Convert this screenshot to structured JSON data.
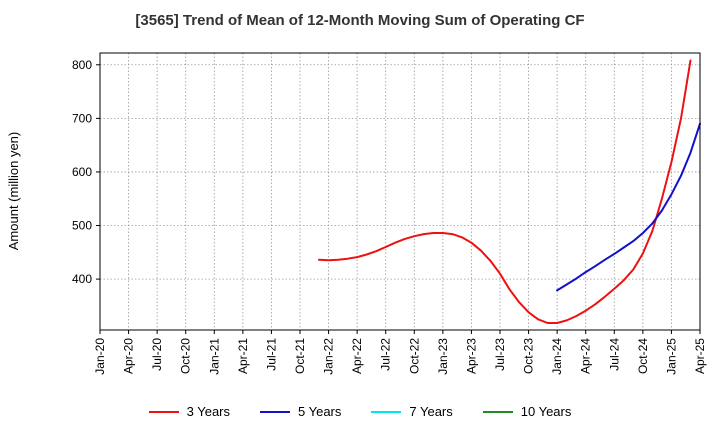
{
  "chart_data": {
    "type": "line",
    "title": "[3565]  Trend of Mean of 12-Month Moving Sum of Operating CF",
    "ylabel": "Amount (million yen)",
    "xlabel": "",
    "x_ticks": [
      "Jan-20",
      "Apr-20",
      "Jul-20",
      "Oct-20",
      "Jan-21",
      "Apr-21",
      "Jul-21",
      "Oct-21",
      "Jan-22",
      "Apr-22",
      "Jul-22",
      "Oct-22",
      "Jan-23",
      "Apr-23",
      "Jul-23",
      "Oct-23",
      "Jan-24",
      "Apr-24",
      "Jul-24",
      "Oct-24",
      "Jan-25",
      "Apr-25"
    ],
    "y_ticks": [
      400,
      500,
      600,
      700,
      800
    ],
    "ylim": [
      305,
      822
    ],
    "grid": true,
    "legend_position": "bottom",
    "series": [
      {
        "name": "3 Years",
        "color": "#ee1111",
        "points": [
          [
            "2021-12",
            436
          ],
          [
            "2022-01",
            435
          ],
          [
            "2022-02",
            436
          ],
          [
            "2022-03",
            438
          ],
          [
            "2022-04",
            441
          ],
          [
            "2022-05",
            446
          ],
          [
            "2022-06",
            452
          ],
          [
            "2022-07",
            460
          ],
          [
            "2022-08",
            468
          ],
          [
            "2022-09",
            475
          ],
          [
            "2022-10",
            480
          ],
          [
            "2022-11",
            484
          ],
          [
            "2022-12",
            486
          ],
          [
            "2023-01",
            486
          ],
          [
            "2023-02",
            484
          ],
          [
            "2023-03",
            478
          ],
          [
            "2023-04",
            468
          ],
          [
            "2023-05",
            453
          ],
          [
            "2023-06",
            434
          ],
          [
            "2023-07",
            410
          ],
          [
            "2023-08",
            381
          ],
          [
            "2023-09",
            357
          ],
          [
            "2023-10",
            338
          ],
          [
            "2023-11",
            325
          ],
          [
            "2023-12",
            318
          ],
          [
            "2024-01",
            318
          ],
          [
            "2024-02",
            323
          ],
          [
            "2024-03",
            331
          ],
          [
            "2024-04",
            341
          ],
          [
            "2024-05",
            353
          ],
          [
            "2024-06",
            367
          ],
          [
            "2024-07",
            382
          ],
          [
            "2024-08",
            398
          ],
          [
            "2024-09",
            418
          ],
          [
            "2024-10",
            448
          ],
          [
            "2024-11",
            490
          ],
          [
            "2024-12",
            550
          ],
          [
            "2025-01",
            618
          ],
          [
            "2025-02",
            700
          ],
          [
            "2025-03",
            808
          ]
        ]
      },
      {
        "name": "5 Years",
        "color": "#1111cc",
        "points": [
          [
            "2024-01",
            379
          ],
          [
            "2024-02",
            390
          ],
          [
            "2024-03",
            401
          ],
          [
            "2024-04",
            413
          ],
          [
            "2024-05",
            424
          ],
          [
            "2024-06",
            436
          ],
          [
            "2024-07",
            447
          ],
          [
            "2024-08",
            459
          ],
          [
            "2024-09",
            471
          ],
          [
            "2024-10",
            486
          ],
          [
            "2024-11",
            504
          ],
          [
            "2024-12",
            528
          ],
          [
            "2025-01",
            558
          ],
          [
            "2025-02",
            593
          ],
          [
            "2025-03",
            636
          ],
          [
            "2025-04",
            690
          ]
        ]
      },
      {
        "name": "7 Years",
        "color": "#00e5ee",
        "points": []
      },
      {
        "name": "10 Years",
        "color": "#228b22",
        "points": []
      }
    ]
  }
}
